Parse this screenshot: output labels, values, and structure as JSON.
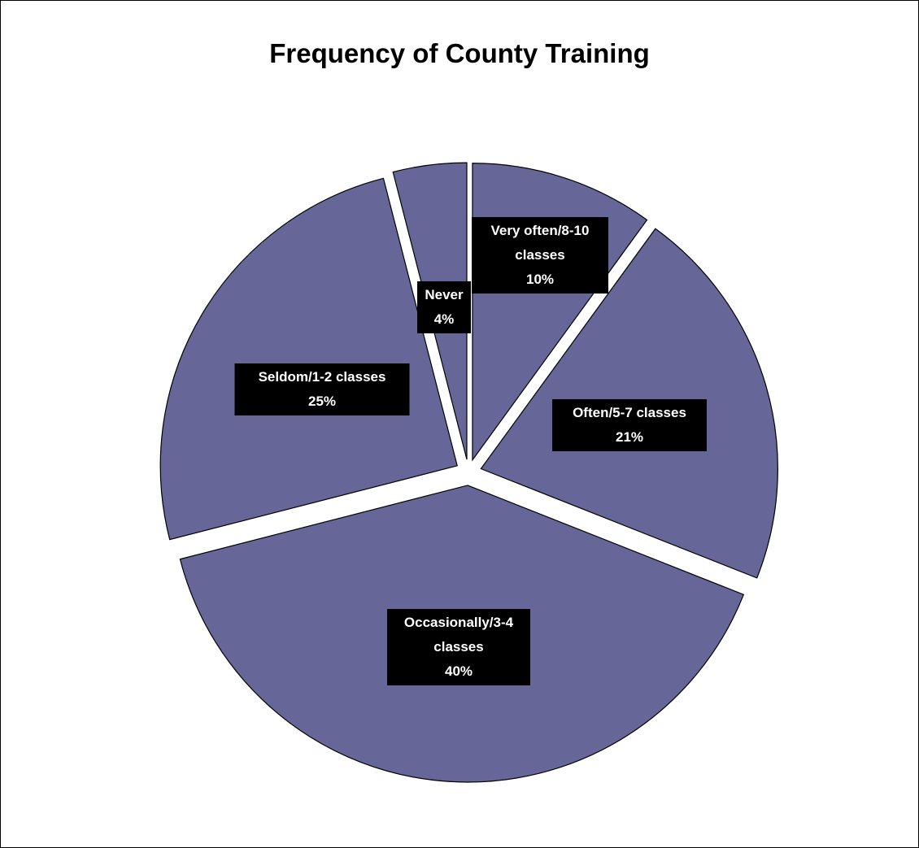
{
  "chart_data": {
    "type": "pie",
    "title": "Frequency of County Training",
    "categories": [
      "Very often/8-10 classes",
      "Often/5-7 classes",
      "Occasionally/3-4 classes",
      "Seldom/1-2 classes",
      "Never"
    ],
    "values": [
      10,
      21,
      40,
      25,
      4
    ],
    "value_labels": [
      "10%",
      "21%",
      "40%",
      "25%",
      "4%"
    ],
    "color": "#666699"
  }
}
